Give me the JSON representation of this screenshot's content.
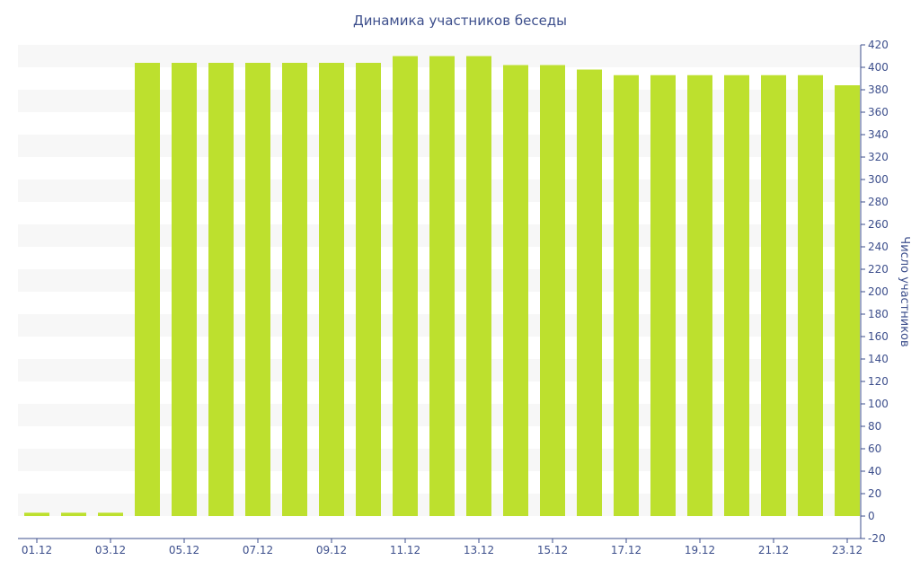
{
  "colors": {
    "bar": "#bde02e",
    "band": "#f7f7f7",
    "axis": "#3d4f8c",
    "text": "#3d4f8c"
  },
  "chart_data": {
    "type": "bar",
    "title": "Динамика участников беседы",
    "xlabel": "",
    "ylabel": "Число участников",
    "y_axis_position": "right",
    "ylim": [
      -20,
      420
    ],
    "y_ticks": [
      -20,
      0,
      20,
      40,
      60,
      80,
      100,
      120,
      140,
      160,
      180,
      200,
      220,
      240,
      260,
      280,
      300,
      320,
      340,
      360,
      380,
      400,
      420
    ],
    "x_tick_labels": [
      "01.12",
      "03.12",
      "05.12",
      "07.12",
      "09.12",
      "11.12",
      "13.12",
      "15.12",
      "17.12",
      "19.12",
      "21.12",
      "23.12"
    ],
    "grid": "horizontal bands",
    "categories": [
      "01.12",
      "02.12",
      "03.12",
      "04.12",
      "05.12",
      "06.12",
      "07.12",
      "08.12",
      "09.12",
      "10.12",
      "11.12",
      "12.12",
      "13.12",
      "14.12",
      "15.12",
      "16.12",
      "17.12",
      "18.12",
      "19.12",
      "20.12",
      "21.12",
      "22.12",
      "23.12"
    ],
    "values": [
      3,
      3,
      3,
      404,
      404,
      404,
      404,
      404,
      404,
      404,
      410,
      410,
      410,
      402,
      402,
      398,
      393,
      393,
      393,
      393,
      393,
      393,
      384
    ]
  }
}
